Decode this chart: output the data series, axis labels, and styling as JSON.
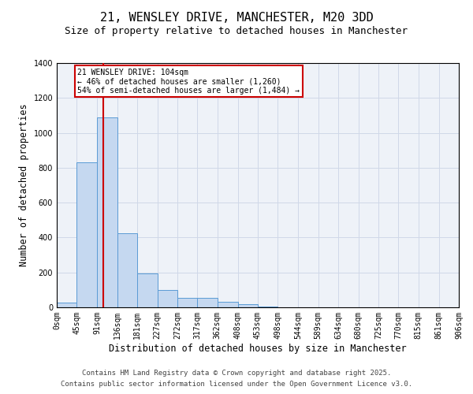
{
  "title1": "21, WENSLEY DRIVE, MANCHESTER, M20 3DD",
  "title2": "Size of property relative to detached houses in Manchester",
  "xlabel": "Distribution of detached houses by size in Manchester",
  "ylabel": "Number of detached properties",
  "bar_values": [
    25,
    830,
    1090,
    425,
    195,
    100,
    55,
    55,
    30,
    20,
    5,
    2,
    0,
    0,
    0,
    0,
    0,
    0,
    0,
    0
  ],
  "bin_edges": [
    0,
    45,
    91,
    136,
    181,
    227,
    272,
    317,
    362,
    408,
    453,
    498,
    544,
    589,
    634,
    680,
    725,
    770,
    815,
    861,
    906
  ],
  "tick_labels": [
    "0sqm",
    "45sqm",
    "91sqm",
    "136sqm",
    "181sqm",
    "227sqm",
    "272sqm",
    "317sqm",
    "362sqm",
    "408sqm",
    "453sqm",
    "498sqm",
    "544sqm",
    "589sqm",
    "634sqm",
    "680sqm",
    "725sqm",
    "770sqm",
    "815sqm",
    "861sqm",
    "906sqm"
  ],
  "bar_color": "#c5d8f0",
  "bar_edge_color": "#5b9bd5",
  "red_line_x": 104,
  "annotation_title": "21 WENSLEY DRIVE: 104sqm",
  "annotation_line1": "← 46% of detached houses are smaller (1,260)",
  "annotation_line2": "54% of semi-detached houses are larger (1,484) →",
  "annotation_box_color": "#ffffff",
  "annotation_box_edge": "#cc0000",
  "red_line_color": "#cc0000",
  "ylim": [
    0,
    1400
  ],
  "yticks": [
    0,
    200,
    400,
    600,
    800,
    1000,
    1200,
    1400
  ],
  "grid_color": "#d0d8e8",
  "bg_color": "#eef2f8",
  "footer1": "Contains HM Land Registry data © Crown copyright and database right 2025.",
  "footer2": "Contains public sector information licensed under the Open Government Licence v3.0.",
  "title_fontsize": 11,
  "subtitle_fontsize": 9,
  "axis_label_fontsize": 8.5,
  "tick_fontsize": 7,
  "annotation_fontsize": 7,
  "footer_fontsize": 6.5
}
